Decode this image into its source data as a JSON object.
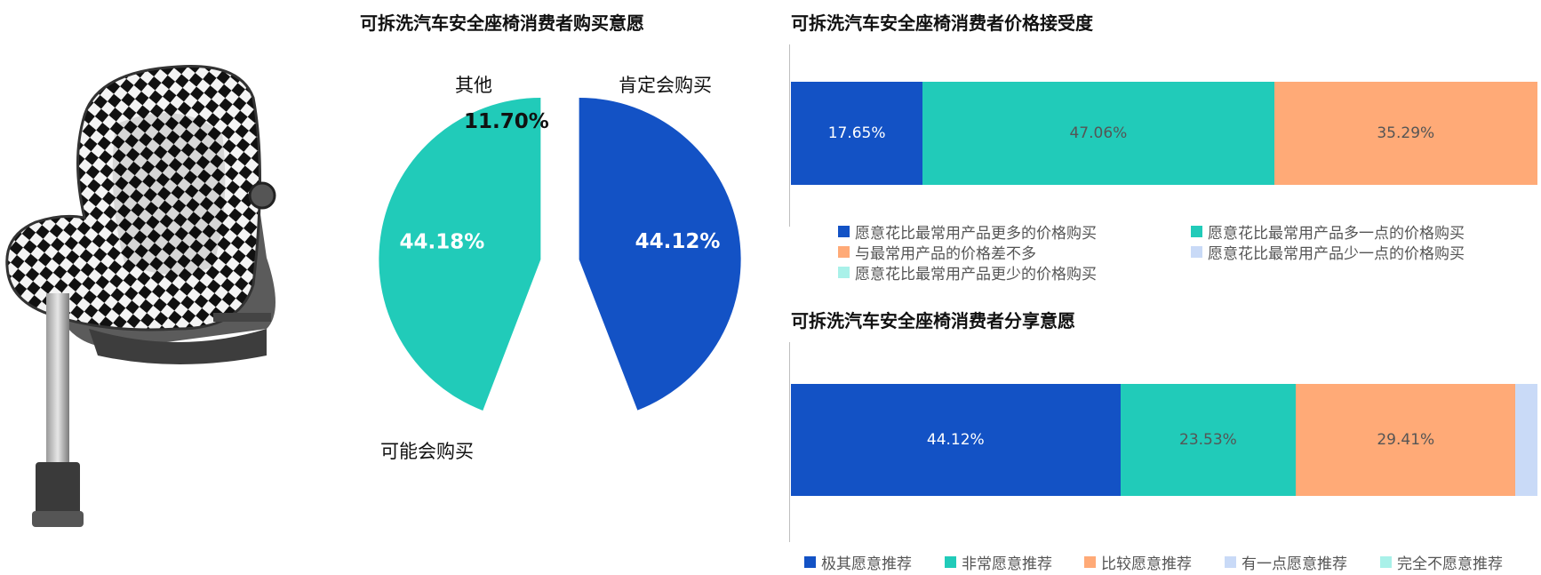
{
  "colors": {
    "blue": "#1352C5",
    "teal": "#21CBB9",
    "orange": "#FFAA77",
    "lightblue": "#C9DAF7",
    "lightcyan": "#A9F1E9"
  },
  "product_image": {
    "icon": "car-seat-illustration"
  },
  "chart_data": [
    {
      "type": "pie",
      "title": "可拆洗汽车安全座椅消费者购买意愿",
      "slices": [
        {
          "label": "肯定会购买",
          "value": 44.12,
          "display": "44.12%",
          "color": "#1352C5"
        },
        {
          "label": "其他",
          "value": 11.7,
          "display": "11.70%",
          "color": "#FFFFFF"
        },
        {
          "label": "可能会购买",
          "value": 44.18,
          "display": "44.18%",
          "color": "#21CBB9"
        }
      ]
    },
    {
      "type": "bar",
      "stacked": true,
      "orientation": "horizontal",
      "title": "可拆洗汽车安全座椅消费者价格接受度",
      "series": [
        {
          "name": "愿意花比最常用产品更多的价格购买",
          "value": 17.65,
          "display": "17.65%",
          "color": "#1352C5"
        },
        {
          "name": "愿意花比最常用产品多一点的价格购买",
          "value": 47.06,
          "display": "47.06%",
          "color": "#21CBB9"
        },
        {
          "name": "与最常用产品的价格差不多",
          "value": 35.29,
          "display": "35.29%",
          "color": "#FFAA77"
        },
        {
          "name": "愿意花比最常用产品少一点的价格购买",
          "value": 0,
          "display": "",
          "color": "#C9DAF7"
        },
        {
          "name": "愿意花比最常用产品更少的价格购买",
          "value": 0,
          "display": "",
          "color": "#A9F1E9"
        }
      ],
      "legend_position": "bottom"
    },
    {
      "type": "bar",
      "stacked": true,
      "orientation": "horizontal",
      "title": "可拆洗汽车安全座椅消费者分享意愿",
      "series": [
        {
          "name": "极其愿意推荐",
          "value": 44.12,
          "display": "44.12%",
          "color": "#1352C5"
        },
        {
          "name": "非常愿意推荐",
          "value": 23.53,
          "display": "23.53%",
          "color": "#21CBB9"
        },
        {
          "name": "比较愿意推荐",
          "value": 29.41,
          "display": "29.41%",
          "color": "#FFAA77"
        },
        {
          "name": "有一点愿意推荐",
          "value": 2.94,
          "display": "",
          "color": "#C9DAF7"
        },
        {
          "name": "完全不愿意推荐",
          "value": 0,
          "display": "",
          "color": "#A9F1E9"
        }
      ],
      "legend_position": "bottom"
    }
  ]
}
